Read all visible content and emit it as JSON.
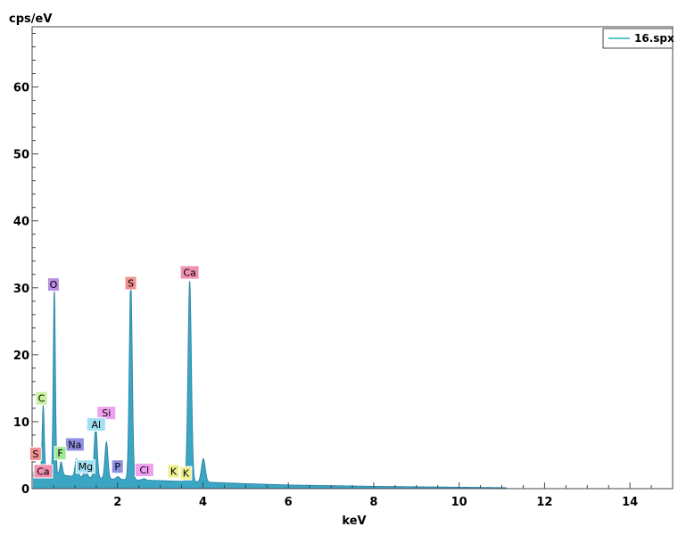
{
  "chart_data": {
    "type": "area",
    "title": "",
    "xlabel": "keV",
    "ylabel": "cps/eV",
    "xlim": [
      0,
      15
    ],
    "ylim": [
      0,
      69
    ],
    "x_ticks": [
      2,
      4,
      6,
      8,
      10,
      12,
      14
    ],
    "x_tick_labels": [
      "2",
      "4",
      "6",
      "8",
      "10",
      "12",
      "14"
    ],
    "y_ticks": [
      0,
      10,
      20,
      30,
      40,
      50,
      60
    ],
    "y_tick_labels": [
      "0",
      "10",
      "20",
      "30",
      "40",
      "50",
      "60"
    ],
    "grid": false,
    "legend": {
      "position": "top-right",
      "entries": [
        "16.spx"
      ]
    },
    "colors": {
      "spectrum_fill": "#3aa6c4",
      "spectrum_line": "#2a7fa0",
      "legend_line": "#5bc8c8"
    },
    "series": [
      {
        "name": "16.spx",
        "peaks": [
          {
            "x": 0.26,
            "y": 12.5,
            "width": 0.025
          },
          {
            "x": 0.52,
            "y": 30.0,
            "width": 0.025
          },
          {
            "x": 0.68,
            "y": 4.0,
            "width": 0.03
          },
          {
            "x": 1.04,
            "y": 4.5,
            "width": 0.035
          },
          {
            "x": 1.25,
            "y": 3.5,
            "width": 0.035
          },
          {
            "x": 1.49,
            "y": 9.5,
            "width": 0.035
          },
          {
            "x": 1.74,
            "y": 7.0,
            "width": 0.035
          },
          {
            "x": 2.01,
            "y": 1.8,
            "width": 0.04
          },
          {
            "x": 2.31,
            "y": 31.5,
            "width": 0.035
          },
          {
            "x": 2.62,
            "y": 1.5,
            "width": 0.04
          },
          {
            "x": 3.31,
            "y": 0.8,
            "width": 0.04
          },
          {
            "x": 3.69,
            "y": 31.0,
            "width": 0.04
          },
          {
            "x": 4.01,
            "y": 4.5,
            "width": 0.045
          }
        ],
        "background": [
          [
            0.1,
            2.5
          ],
          [
            0.5,
            2.2
          ],
          [
            1.0,
            1.8
          ],
          [
            2.0,
            1.4
          ],
          [
            3.0,
            1.2
          ],
          [
            4.0,
            1.0
          ],
          [
            5.0,
            0.75
          ],
          [
            6.0,
            0.55
          ],
          [
            8.0,
            0.35
          ],
          [
            10.0,
            0.22
          ],
          [
            11.1,
            0.15
          ],
          [
            11.12,
            0.0
          ]
        ]
      }
    ],
    "element_labels": [
      {
        "text": "O",
        "x": 0.5,
        "y": 30.5,
        "color": "#b68fe0"
      },
      {
        "text": "S",
        "x": 2.31,
        "y": 30.7,
        "color": "#f09090"
      },
      {
        "text": "Ca",
        "x": 3.69,
        "y": 32.3,
        "color": "#f090b0"
      },
      {
        "text": "C",
        "x": 0.22,
        "y": 13.5,
        "color": "#c8f0a0"
      },
      {
        "text": "Si",
        "x": 1.74,
        "y": 11.3,
        "color": "#f0a0f0"
      },
      {
        "text": "Al",
        "x": 1.5,
        "y": 9.6,
        "color": "#a0e0f0"
      },
      {
        "text": "Na",
        "x": 1.0,
        "y": 6.6,
        "color": "#9090e0"
      },
      {
        "text": "F",
        "x": 0.66,
        "y": 5.3,
        "color": "#a0e890"
      },
      {
        "text": "Mg",
        "x": 1.25,
        "y": 3.3,
        "color": "#a0e0f0"
      },
      {
        "text": "P",
        "x": 2.0,
        "y": 3.3,
        "color": "#9090e0"
      },
      {
        "text": "Cl",
        "x": 2.63,
        "y": 2.8,
        "color": "#f0a0f0"
      },
      {
        "text": "K",
        "x": 3.31,
        "y": 2.6,
        "color": "#f0f090"
      },
      {
        "text": "K",
        "x": 3.6,
        "y": 2.3,
        "color": "#f0f090"
      },
      {
        "text": "S",
        "x": 0.08,
        "y": 5.2,
        "color": "#f09090"
      },
      {
        "text": "Ca",
        "x": 0.26,
        "y": 2.6,
        "color": "#f090b0"
      }
    ]
  }
}
